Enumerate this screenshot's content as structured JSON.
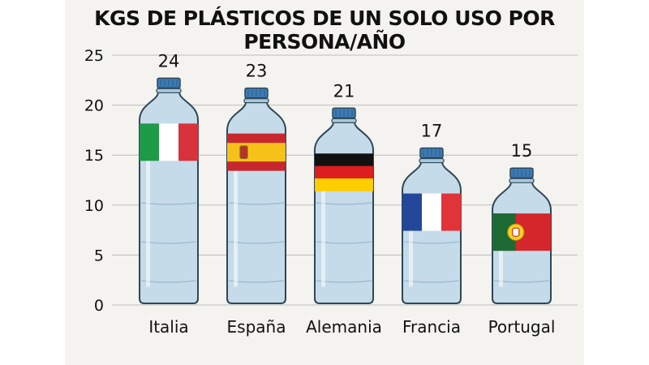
{
  "chart_data": {
    "type": "bar",
    "title": "KGS DE PLÁSTICOS DE UN SOLO USO POR PERSONA/AÑO",
    "categories": [
      "Italia",
      "España",
      "Alemania",
      "Francia",
      "Portugal"
    ],
    "values": [
      24,
      23,
      21,
      17,
      15
    ],
    "ylim": [
      0,
      25
    ],
    "yticks": [
      "0",
      "5",
      "10",
      "15",
      "20",
      "25"
    ],
    "grid": true,
    "xlabel": "",
    "ylabel": "",
    "mark": "bottle-with-flag",
    "flags": [
      "italy-flag",
      "spain-flag",
      "germany-flag",
      "france-flag",
      "portugal-flag"
    ]
  },
  "colors": {
    "background": "#f4f3ef",
    "bottle_body": "#c6dbe9",
    "bottle_outline": "#2f4756",
    "cap": "#3d7ab4",
    "grid": "#bcbcbc",
    "text": "#111111"
  }
}
